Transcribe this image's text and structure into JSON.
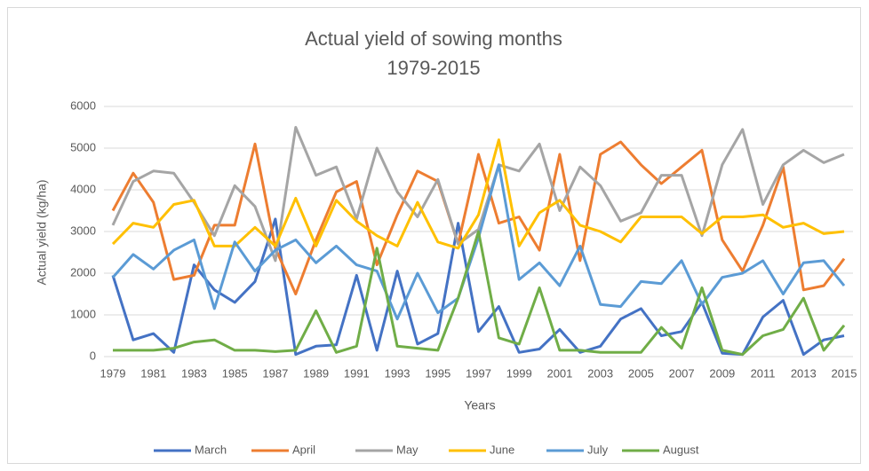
{
  "chart_data": {
    "type": "line",
    "title": "Actual yield of sowing months",
    "subtitle": "1979-2015",
    "x_label": "Years",
    "y_label": "Actual yield (kg/ha)",
    "x": [
      1979,
      1980,
      1981,
      1982,
      1983,
      1984,
      1985,
      1986,
      1987,
      1988,
      1989,
      1990,
      1991,
      1992,
      1993,
      1994,
      1995,
      1996,
      1997,
      1998,
      1999,
      2000,
      2001,
      2002,
      2003,
      2004,
      2005,
      2006,
      2007,
      2008,
      2009,
      2010,
      2011,
      2012,
      2013,
      2014,
      2015
    ],
    "xlim": [
      1979,
      2015
    ],
    "xticks": [
      1979,
      1981,
      1983,
      1985,
      1987,
      1989,
      1991,
      1993,
      1995,
      1997,
      1999,
      2001,
      2003,
      2005,
      2007,
      2009,
      2011,
      2013,
      2015
    ],
    "ylim": [
      0,
      6000
    ],
    "yticks": [
      0,
      1000,
      2000,
      3000,
      4000,
      5000,
      6000
    ],
    "grid": true,
    "legend": "bottom",
    "series": [
      {
        "name": "March",
        "color": "#4472c4",
        "values": [
          1950,
          400,
          550,
          100,
          2200,
          1600,
          1300,
          1800,
          3300,
          50,
          250,
          280,
          1950,
          150,
          2050,
          300,
          550,
          3200,
          600,
          1200,
          100,
          180,
          650,
          100,
          250,
          900,
          1150,
          500,
          600,
          1300,
          80,
          50,
          950,
          1350,
          50,
          400,
          500
        ]
      },
      {
        "name": "April",
        "color": "#ed7d31",
        "values": [
          3500,
          4400,
          3700,
          1850,
          1950,
          3150,
          3150,
          5100,
          2600,
          1500,
          2800,
          3950,
          4200,
          2200,
          3400,
          4450,
          4200,
          2700,
          4850,
          3200,
          3350,
          2550,
          4850,
          2300,
          4850,
          5150,
          4600,
          4150,
          4550,
          4950,
          2800,
          2050,
          3150,
          4550,
          1600,
          1700,
          2350
        ]
      },
      {
        "name": "May",
        "color": "#a5a5a5",
        "values": [
          3150,
          4200,
          4450,
          4400,
          3700,
          2900,
          4100,
          3600,
          2300,
          5500,
          4350,
          4550,
          3300,
          5000,
          3950,
          3350,
          4250,
          2700,
          3050,
          4600,
          4450,
          5100,
          3500,
          4550,
          4100,
          3250,
          3450,
          4350,
          4350,
          2900,
          4600,
          5450,
          3650,
          4600,
          4950,
          4650,
          4850
        ]
      },
      {
        "name": "June",
        "color": "#ffc000",
        "values": [
          2700,
          3200,
          3100,
          3650,
          3750,
          2650,
          2650,
          3100,
          2650,
          3800,
          2650,
          3750,
          3250,
          2900,
          2650,
          3700,
          2750,
          2600,
          3400,
          5200,
          2650,
          3450,
          3750,
          3150,
          3000,
          2750,
          3350,
          3350,
          3350,
          2950,
          3350,
          3350,
          3400,
          3100,
          3200,
          2950,
          3000
        ]
      },
      {
        "name": "July",
        "color": "#5b9bd5",
        "values": [
          1900,
          2450,
          2100,
          2550,
          2800,
          1150,
          2750,
          2050,
          2550,
          2800,
          2250,
          2650,
          2200,
          2050,
          900,
          2000,
          1050,
          1400,
          2850,
          4600,
          1850,
          2250,
          1700,
          2650,
          1250,
          1200,
          1800,
          1750,
          2300,
          1250,
          1900,
          2000,
          2300,
          1500,
          2250,
          2300,
          1700
        ]
      },
      {
        "name": "August",
        "color": "#70ad47",
        "values": [
          150,
          150,
          150,
          200,
          350,
          400,
          150,
          150,
          120,
          150,
          1100,
          100,
          250,
          2600,
          250,
          200,
          150,
          1400,
          3000,
          450,
          300,
          1650,
          150,
          150,
          100,
          100,
          100,
          700,
          200,
          1650,
          150,
          50,
          500,
          650,
          1400,
          150,
          750
        ]
      }
    ]
  }
}
